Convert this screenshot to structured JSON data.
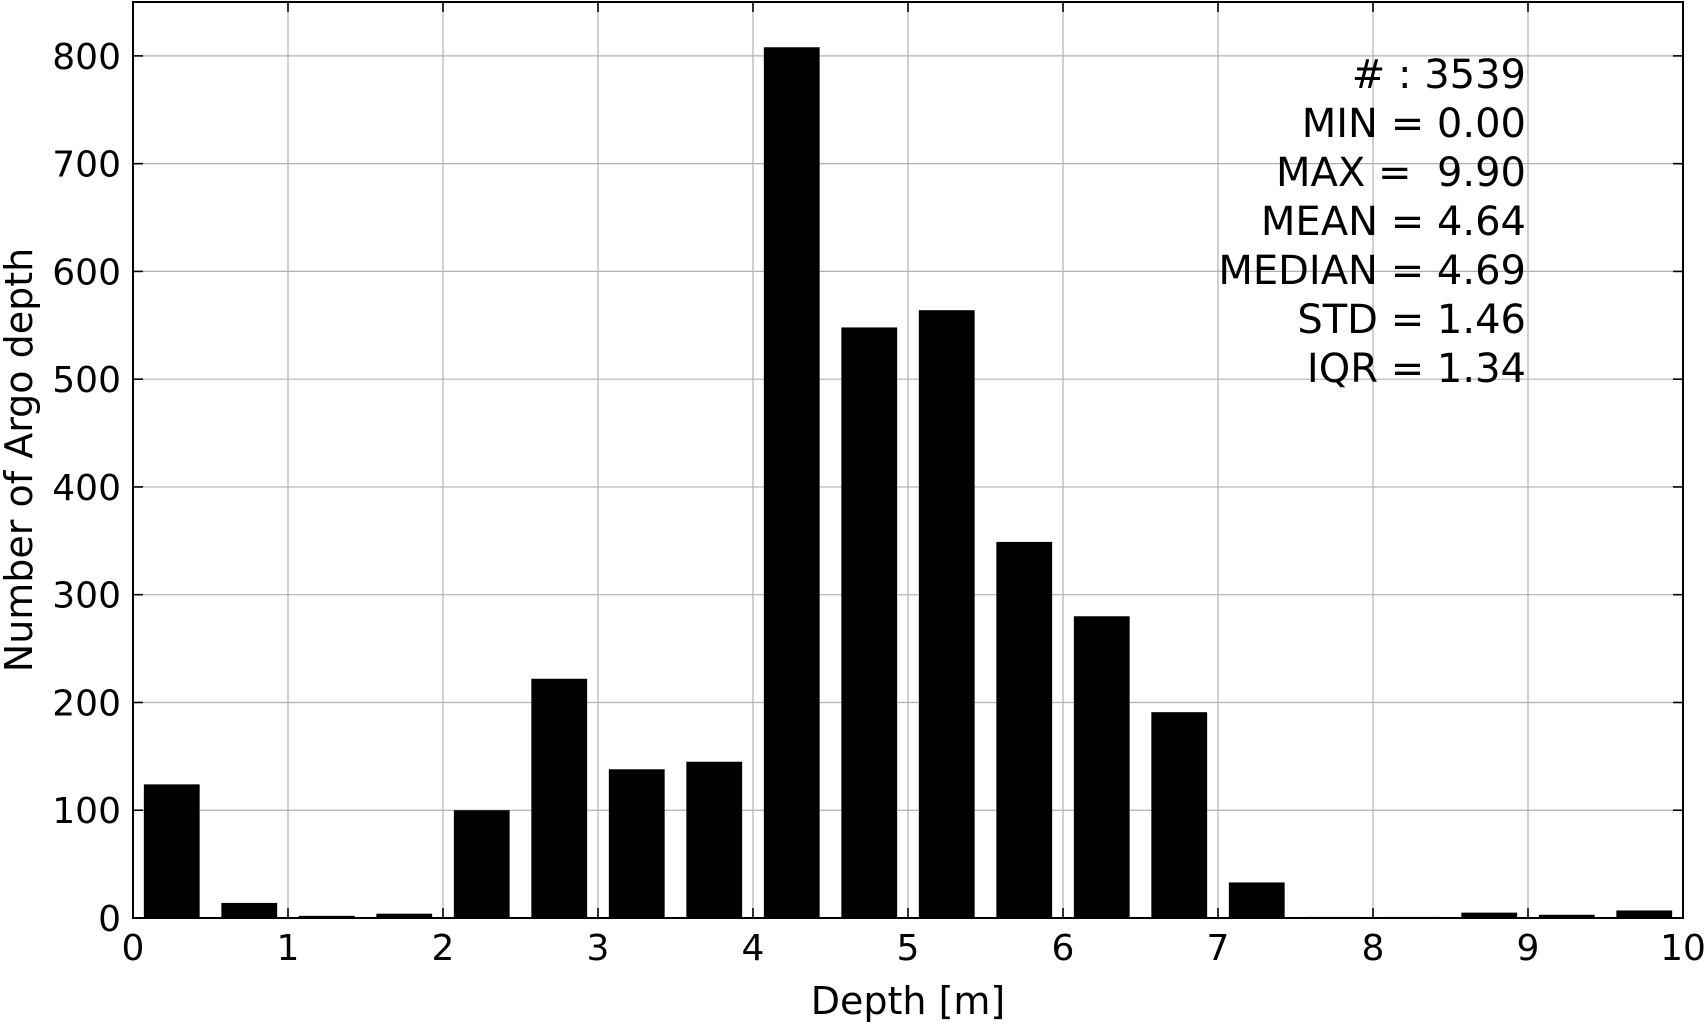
{
  "chart_data": {
    "type": "bar",
    "title": "",
    "xlabel": "Depth [m]",
    "ylabel": "Number of Argo depth",
    "xlim": [
      0,
      10
    ],
    "ylim": [
      0,
      850
    ],
    "grid": true,
    "bar_color": "#000000",
    "bin_width": 0.5,
    "bar_width": 0.36,
    "x": [
      0.25,
      0.75,
      1.25,
      1.75,
      2.25,
      2.75,
      3.25,
      3.75,
      4.25,
      4.75,
      5.25,
      5.75,
      6.25,
      6.75,
      7.25,
      7.75,
      8.25,
      8.75,
      9.25,
      9.75
    ],
    "values": [
      124,
      14,
      2,
      4,
      100,
      222,
      138,
      145,
      808,
      548,
      564,
      349,
      280,
      191,
      33,
      1,
      1,
      5,
      3,
      7
    ],
    "x_ticks": [
      "0",
      "1",
      "2",
      "3",
      "4",
      "5",
      "6",
      "7",
      "8",
      "9",
      "10"
    ],
    "y_ticks": [
      "0",
      "100",
      "200",
      "300",
      "400",
      "500",
      "600",
      "700",
      "800"
    ],
    "annotations": [
      "# : 3539",
      "MIN = 0.00",
      "MAX =  9.90",
      "MEAN = 4.64",
      "MEDIAN = 4.69",
      "STD = 1.46",
      "IQR = 1.34"
    ]
  }
}
